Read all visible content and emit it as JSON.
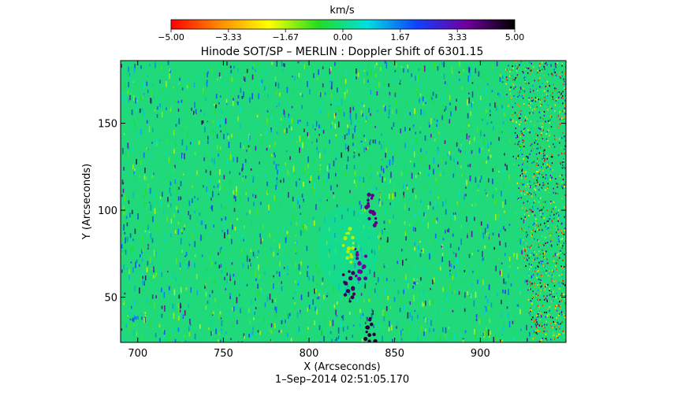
{
  "chart_data": {
    "type": "heatmap",
    "title": "Hinode SOT/SP – MERLIN : Doppler Shift of 6301.15",
    "xlabel": "X (Arcseconds)",
    "ylabel": "Y (Arcseconds)",
    "timestamp": "1–Sep–2014 02:51:05.170",
    "xlim": [
      690,
      950
    ],
    "ylim": [
      24,
      186
    ],
    "x_ticks": [
      700,
      750,
      800,
      850,
      900
    ],
    "y_ticks": [
      50,
      100,
      150
    ],
    "x_tick_labels": [
      "700",
      "750",
      "800",
      "850",
      "900"
    ],
    "y_tick_labels": [
      "50",
      "100",
      "150"
    ],
    "colorbar": {
      "unit_label": "km/s",
      "range": [
        -5.0,
        5.0
      ],
      "ticks": [
        -5.0,
        -3.33,
        -1.67,
        0.0,
        1.67,
        3.33,
        5.0
      ],
      "tick_labels": [
        "−5.00",
        "−3.33",
        "−1.67",
        "0.00",
        "1.67",
        "3.33",
        "5.00"
      ],
      "colors": [
        "#ff0000",
        "#ff8c00",
        "#ffff00",
        "#22dd22",
        "#00e0e0",
        "#1040ff",
        "#7000a0",
        "#000000"
      ]
    },
    "field": {
      "background_value": 0.3,
      "limb_x_top": 913,
      "limb_x_bottom": 930,
      "features": [
        {
          "x": 836,
          "y": 100,
          "value": 3.8
        },
        {
          "x": 830,
          "y": 68,
          "value": 3.6
        },
        {
          "x": 823,
          "y": 56,
          "value": 4.2
        },
        {
          "x": 836,
          "y": 28,
          "value": 4.5
        },
        {
          "x": 823,
          "y": 79,
          "value": -1.6
        }
      ]
    }
  }
}
